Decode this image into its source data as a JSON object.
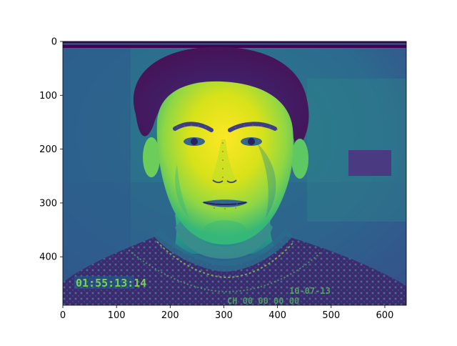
{
  "image": {
    "description_colormap": "viridis",
    "subject": "grayscale video frame of a man's face, rendered with viridis colormap",
    "overlay_text": {
      "timecode": "01:55:13:14",
      "date": "10-07-13",
      "channel": "CH 00  00 00 00"
    },
    "landmark_color": "#d23a3a"
  },
  "axes": {
    "x_ticks": [
      "0",
      "100",
      "200",
      "300",
      "400",
      "500",
      "600"
    ],
    "x_tick_values": [
      0,
      100,
      200,
      300,
      400,
      500,
      600
    ],
    "y_ticks": [
      "0",
      "100",
      "200",
      "300",
      "400"
    ],
    "y_tick_values": [
      0,
      100,
      200,
      300,
      400
    ],
    "xlim": [
      0,
      640
    ],
    "ylim": [
      490,
      0
    ]
  },
  "colors": {
    "dark": "#440154",
    "deep": "#3b528b",
    "mid": "#21918c",
    "light": "#5ec962",
    "bright": "#fde725"
  }
}
